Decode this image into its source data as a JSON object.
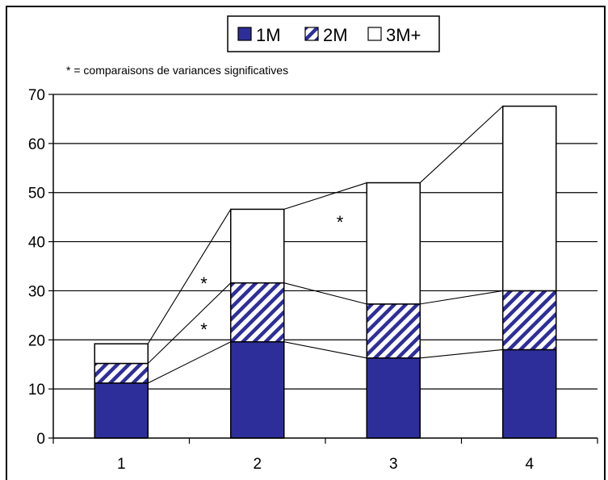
{
  "chart_data": {
    "type": "bar",
    "stacked": true,
    "categories": [
      "1",
      "2",
      "3",
      "4"
    ],
    "series": [
      {
        "name": "1M",
        "values": [
          11.2,
          19.6,
          16.3,
          18.0
        ],
        "fill": "#2e2e9a",
        "pattern": "solid"
      },
      {
        "name": "2M",
        "values": [
          4.0,
          12.0,
          11.0,
          12.0
        ],
        "fill": "#2e2e9a",
        "pattern": "hatch"
      },
      {
        "name": "3M+",
        "values": [
          4.0,
          15.0,
          24.7,
          37.6
        ],
        "fill": "#ffffff",
        "pattern": "none"
      }
    ],
    "ylim": [
      0,
      70
    ],
    "yticks": [
      0,
      10,
      20,
      30,
      40,
      50,
      60,
      70
    ],
    "grid": true,
    "legend_position": "top-center",
    "note": "* = comparaisons de variances significatives",
    "annotations": [
      {
        "text": "*",
        "between": [
          "1",
          "2"
        ],
        "y": 32.5
      },
      {
        "text": "*",
        "between": [
          "1",
          "2"
        ],
        "y": 23.2
      },
      {
        "text": "*",
        "between": [
          "2",
          "3"
        ],
        "y": 45.0
      }
    ],
    "connector_lines": true
  }
}
